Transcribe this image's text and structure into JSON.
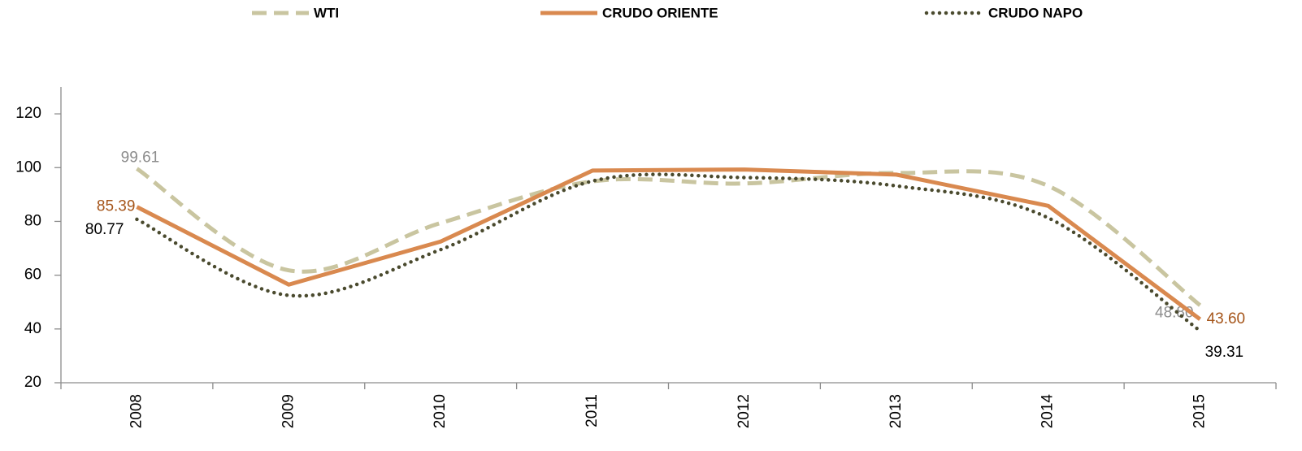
{
  "chart_data": {
    "type": "line",
    "categories": [
      "2008",
      "2009",
      "2010",
      "2011",
      "2012",
      "2013",
      "2014",
      "2015"
    ],
    "series": [
      {
        "name": "WTI",
        "color": "#c9c5a0",
        "dash": "dashed",
        "smooth": true,
        "label_color": "#8c8c8c",
        "values": [
          99.61,
          61.8,
          79.4,
          94.9,
          94.1,
          98.0,
          93.2,
          48.8
        ],
        "value_labels": [
          "99.61",
          null,
          null,
          null,
          null,
          null,
          null,
          "48.80"
        ]
      },
      {
        "name": "CRUDO ORIENTE",
        "color": "#d9894f",
        "dash": "solid",
        "smooth": false,
        "label_color": "#a5551a",
        "values": [
          85.39,
          56.5,
          72.5,
          98.9,
          99.3,
          97.4,
          85.8,
          43.6
        ],
        "value_labels": [
          "85.39",
          null,
          null,
          null,
          null,
          null,
          null,
          "43.60"
        ]
      },
      {
        "name": "CRUDO NAPO",
        "color": "#4a4a2e",
        "dash": "dotted",
        "smooth": true,
        "label_color": "#000000",
        "values": [
          80.77,
          52.5,
          69.5,
          95.0,
          96.3,
          93.2,
          81.3,
          39.31
        ],
        "value_labels": [
          "80.77",
          null,
          null,
          null,
          null,
          null,
          null,
          "39.31"
        ]
      }
    ],
    "ylim": [
      20,
      130
    ],
    "yticks": [
      20,
      40,
      60,
      80,
      100,
      120
    ],
    "grid": false,
    "legend": "top"
  }
}
